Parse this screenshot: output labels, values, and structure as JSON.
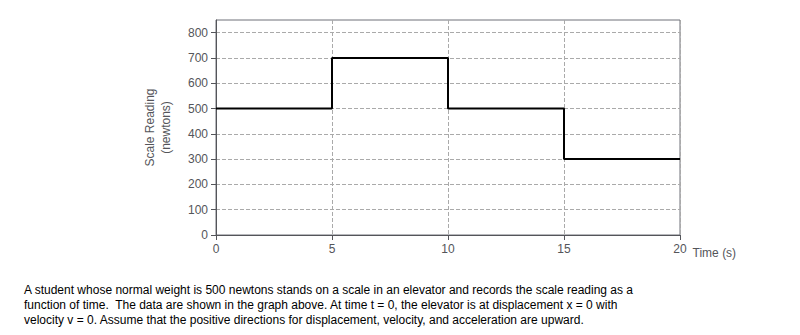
{
  "chart_data": {
    "type": "line",
    "xlabel": "Time (s)",
    "ylabel": "Scale Reading\n(newtons)",
    "caption": "A student whose normal weight is 500 newtons stands on a scale in an elevator and records the scale reading as a\nfunction of time.  The data are shown in the graph above. At time t = 0, the elevator is at displacement x = 0 with\nvelocity v = 0. Assume that the positive directions for displacement, velocity, and acceleration are upward.",
    "x": [
      0,
      5,
      5,
      10,
      10,
      15,
      15,
      20
    ],
    "values": [
      500,
      500,
      700,
      700,
      500,
      500,
      300,
      300
    ],
    "color": "#000000",
    "xlim": [
      0,
      20
    ],
    "ylim": [
      0,
      850
    ],
    "xticks": [
      0,
      5,
      10,
      15,
      20
    ],
    "yticks": [
      0,
      100,
      200,
      300,
      400,
      500,
      600,
      700,
      800
    ],
    "grid": true,
    "line_style": "solid"
  }
}
